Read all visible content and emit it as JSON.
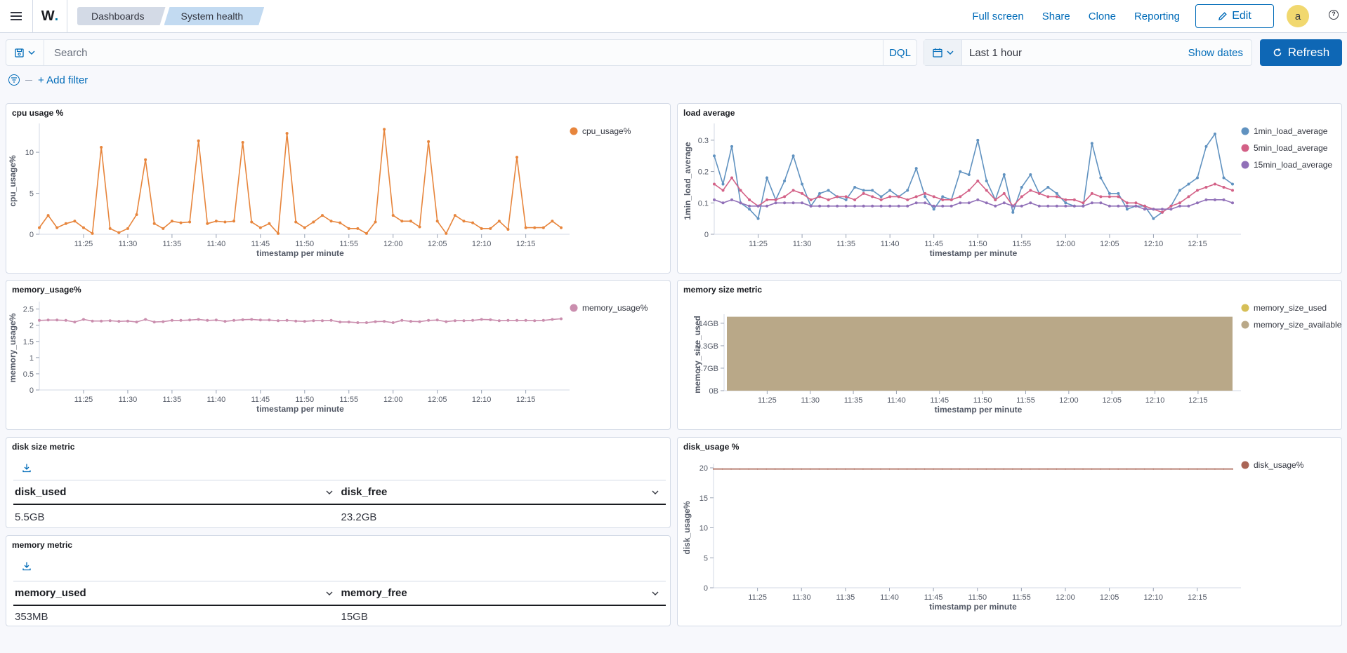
{
  "header": {
    "logo_text": "W",
    "logo_dot": ".",
    "breadcrumbs": [
      "Dashboards",
      "System health"
    ],
    "links": [
      "Full screen",
      "Share",
      "Clone",
      "Reporting"
    ],
    "edit_label": "Edit",
    "avatar_initial": "a",
    "help_glyph": "?"
  },
  "query": {
    "placeholder": "Search",
    "language": "DQL",
    "time_range": "Last 1 hour",
    "show_dates": "Show dates",
    "refresh_label": "Refresh",
    "add_filter": "+ Add filter"
  },
  "colors": {
    "cpu": "#e7853c",
    "load1": "#6092c0",
    "load5": "#d36086",
    "load15": "#9170b8",
    "memory_usage": "#ca8eae",
    "memory_used": "#d6bf57",
    "memory_available": "#b9a888",
    "disk_usage": "#aa6556"
  },
  "panels": {
    "cpu": {
      "title": "cpu usage %"
    },
    "load": {
      "title": "load average"
    },
    "memory_usage": {
      "title": "memory_usage%"
    },
    "memory_size": {
      "title": "memory size metric"
    },
    "disk_size": {
      "title": "disk size metric",
      "columns": [
        "disk_used",
        "disk_free"
      ],
      "row": [
        "5.5GB",
        "23.2GB"
      ]
    },
    "memory_metric": {
      "title": "memory metric",
      "columns": [
        "memory_used",
        "memory_free"
      ],
      "row": [
        "353MB",
        "15GB"
      ]
    },
    "disk_usage": {
      "title": "disk_usage %"
    }
  },
  "chart_data": [
    {
      "id": "cpu",
      "type": "line",
      "title": "cpu usage %",
      "xlabel": "timestamp per minute",
      "ylabel": "cpu_usage%",
      "x_ticks": [
        "11:25",
        "11:30",
        "11:35",
        "11:40",
        "11:45",
        "11:50",
        "11:55",
        "12:00",
        "12:05",
        "12:10",
        "12:15"
      ],
      "y_ticks": [
        "0",
        "5",
        "10"
      ],
      "ylim": [
        0,
        13
      ],
      "legend_position": "top-right",
      "series": [
        {
          "name": "cpu_usage%",
          "color_key": "cpu",
          "values": [
            0.8,
            2.3,
            0.8,
            1.3,
            1.6,
            0.8,
            0.1,
            10.6,
            0.7,
            0.2,
            0.7,
            2.4,
            9.1,
            1.3,
            0.7,
            1.6,
            1.4,
            1.5,
            11.4,
            1.3,
            1.6,
            1.5,
            1.6,
            11.2,
            1.5,
            0.8,
            1.3,
            0.1,
            12.3,
            1.5,
            0.8,
            1.5,
            2.3,
            1.6,
            1.4,
            0.7,
            0.7,
            0.1,
            1.5,
            12.8,
            2.3,
            1.6,
            1.6,
            0.9,
            11.3,
            1.6,
            0.1,
            2.3,
            1.6,
            1.4,
            0.7,
            0.7,
            1.6,
            0.6,
            9.4,
            0.8,
            0.8,
            0.8,
            1.6,
            0.8
          ]
        }
      ]
    },
    {
      "id": "load",
      "type": "line",
      "title": "load average",
      "xlabel": "timestamp per minute",
      "ylabel": "1min_load_average",
      "x_ticks": [
        "11:25",
        "11:30",
        "11:35",
        "11:40",
        "11:45",
        "11:50",
        "11:55",
        "12:00",
        "12:05",
        "12:10",
        "12:15"
      ],
      "y_ticks": [
        "0",
        "0.1",
        "0.2",
        "0.3"
      ],
      "ylim": [
        0,
        0.34
      ],
      "legend_position": "top-right",
      "series": [
        {
          "name": "1min_load_average",
          "color_key": "load1",
          "values": [
            0.25,
            0.16,
            0.28,
            0.1,
            0.08,
            0.05,
            0.18,
            0.11,
            0.17,
            0.25,
            0.16,
            0.09,
            0.13,
            0.14,
            0.12,
            0.11,
            0.15,
            0.14,
            0.14,
            0.12,
            0.14,
            0.12,
            0.14,
            0.21,
            0.12,
            0.08,
            0.12,
            0.11,
            0.2,
            0.19,
            0.3,
            0.17,
            0.11,
            0.19,
            0.07,
            0.15,
            0.19,
            0.13,
            0.15,
            0.13,
            0.1,
            0.09,
            0.09,
            0.29,
            0.18,
            0.13,
            0.13,
            0.08,
            0.09,
            0.09,
            0.05,
            0.07,
            0.09,
            0.14,
            0.16,
            0.18,
            0.28,
            0.32,
            0.18,
            0.16
          ]
        },
        {
          "name": "5min_load_average",
          "color_key": "load5",
          "values": [
            0.16,
            0.14,
            0.18,
            0.14,
            0.11,
            0.09,
            0.11,
            0.11,
            0.12,
            0.14,
            0.13,
            0.11,
            0.12,
            0.11,
            0.12,
            0.12,
            0.11,
            0.13,
            0.12,
            0.11,
            0.12,
            0.12,
            0.11,
            0.12,
            0.13,
            0.12,
            0.11,
            0.11,
            0.12,
            0.14,
            0.17,
            0.14,
            0.11,
            0.13,
            0.09,
            0.12,
            0.14,
            0.13,
            0.12,
            0.12,
            0.11,
            0.11,
            0.1,
            0.13,
            0.12,
            0.12,
            0.12,
            0.1,
            0.1,
            0.09,
            0.08,
            0.07,
            0.09,
            0.1,
            0.12,
            0.14,
            0.15,
            0.16,
            0.15,
            0.14
          ]
        },
        {
          "name": "15min_load_average",
          "color_key": "load15",
          "values": [
            0.11,
            0.1,
            0.11,
            0.1,
            0.09,
            0.09,
            0.09,
            0.1,
            0.1,
            0.1,
            0.1,
            0.09,
            0.09,
            0.09,
            0.09,
            0.09,
            0.09,
            0.09,
            0.09,
            0.09,
            0.09,
            0.09,
            0.09,
            0.1,
            0.1,
            0.09,
            0.09,
            0.09,
            0.1,
            0.1,
            0.11,
            0.1,
            0.09,
            0.1,
            0.09,
            0.09,
            0.1,
            0.09,
            0.09,
            0.09,
            0.09,
            0.09,
            0.09,
            0.1,
            0.1,
            0.09,
            0.09,
            0.09,
            0.09,
            0.08,
            0.08,
            0.08,
            0.08,
            0.09,
            0.09,
            0.1,
            0.11,
            0.11,
            0.11,
            0.1
          ]
        }
      ]
    },
    {
      "id": "memory_usage",
      "type": "line",
      "title": "memory_usage%",
      "xlabel": "timestamp per minute",
      "ylabel": "memory_usage%",
      "x_ticks": [
        "11:25",
        "11:30",
        "11:35",
        "11:40",
        "11:45",
        "11:50",
        "11:55",
        "12:00",
        "12:05",
        "12:10",
        "12:15"
      ],
      "y_ticks": [
        "0",
        "0.5",
        "1",
        "1.5",
        "2",
        "2.5"
      ],
      "ylim": [
        0,
        2.6
      ],
      "legend_position": "top-right",
      "series": [
        {
          "name": "memory_usage%",
          "color_key": "memory_usage",
          "values": [
            2.15,
            2.16,
            2.16,
            2.15,
            2.1,
            2.18,
            2.13,
            2.13,
            2.14,
            2.12,
            2.13,
            2.1,
            2.18,
            2.1,
            2.11,
            2.15,
            2.15,
            2.16,
            2.18,
            2.15,
            2.16,
            2.12,
            2.15,
            2.17,
            2.18,
            2.16,
            2.16,
            2.14,
            2.15,
            2.13,
            2.12,
            2.14,
            2.14,
            2.15,
            2.1,
            2.1,
            2.08,
            2.08,
            2.11,
            2.12,
            2.08,
            2.15,
            2.12,
            2.11,
            2.15,
            2.16,
            2.11,
            2.14,
            2.14,
            2.15,
            2.18,
            2.17,
            2.14,
            2.15,
            2.15,
            2.15,
            2.14,
            2.15,
            2.18,
            2.2
          ]
        }
      ]
    },
    {
      "id": "memory_size",
      "type": "area",
      "title": "memory size metric",
      "xlabel": "timestamp per minute",
      "ylabel": "memory_size_used",
      "x_ticks": [
        "11:25",
        "11:30",
        "11:35",
        "11:40",
        "11:45",
        "11:50",
        "11:55",
        "12:00",
        "12:05",
        "12:10",
        "12:15"
      ],
      "y_ticks": [
        "0B",
        "4.7GB",
        "9.3GB",
        "14GB"
      ],
      "ylim": [
        0,
        15
      ],
      "legend_position": "top-right",
      "series": [
        {
          "name": "memory_size_used",
          "color_key": "memory_used",
          "value": 0.353
        },
        {
          "name": "memory_size_available",
          "color_key": "memory_available",
          "value": 15.35
        }
      ]
    },
    {
      "id": "disk_usage",
      "type": "line",
      "title": "disk_usage %",
      "xlabel": "timestamp per minute",
      "ylabel": "disk_usage%",
      "x_ticks": [
        "11:25",
        "11:30",
        "11:35",
        "11:40",
        "11:45",
        "11:50",
        "11:55",
        "12:00",
        "12:05",
        "12:10",
        "12:15"
      ],
      "y_ticks": [
        "0",
        "5",
        "10",
        "15",
        "20"
      ],
      "ylim": [
        0,
        20
      ],
      "legend_position": "top-right",
      "series": [
        {
          "name": "disk_usage%",
          "color_key": "disk_usage",
          "value": 19.8
        }
      ]
    }
  ]
}
